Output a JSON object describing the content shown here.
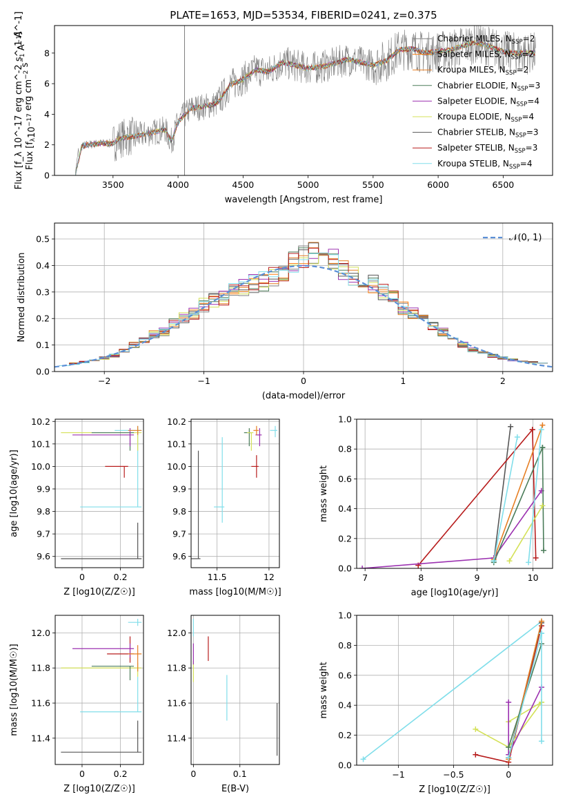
{
  "figure": {
    "title": "PLATE=1653, MJD=53534, FIBERID=0241, z=0.375"
  },
  "colors": {
    "spectrum": "#7f7f7f",
    "normal_curve": "#5b8fd6",
    "grid": "#b0b0b0",
    "models": [
      "#8c8c8c",
      "#d62728",
      "#ff7f0e",
      "#2ca02c",
      "#9467bd",
      "#dbdb8d",
      "#17becf",
      "#8c564b",
      "#e377c2"
    ]
  },
  "models": [
    {
      "label": "Chabrier MILES, N_SSP=2",
      "color": "#7f7f7f"
    },
    {
      "label": "Salpeter MILES, N_SSP=2",
      "color": "#ff7f0e"
    },
    {
      "label": "Kroupa MILES, N_SSP=2",
      "color": "#e67e22"
    },
    {
      "label": "Chabrier ELODIE, N_SSP=3",
      "color": "#4a7c59"
    },
    {
      "label": "Salpeter ELODIE, N_SSP=4",
      "color": "#9b30b0"
    },
    {
      "label": "Kroupa ELODIE, N_SSP=4",
      "color": "#d4e157"
    },
    {
      "label": "Chabrier STELIB, N_SSP=3",
      "color": "#555555"
    },
    {
      "label": "Salpeter STELIB, N_SSP=3",
      "color": "#b71c1c"
    },
    {
      "label": "Kroupa STELIB, N_SSP=4",
      "color": "#80deea"
    }
  ],
  "chart_data": [
    {
      "id": "spectrum",
      "type": "line",
      "xlabel": "wavelength [Angstrom, rest frame]",
      "ylabel": "Flux [f_λ 10^-17 erg cm^-2 s^-1 A^-1]",
      "xlim": [
        3050,
        6880
      ],
      "ylim": [
        0,
        9.8
      ],
      "xticks": [
        3500,
        4000,
        4500,
        5000,
        5500,
        6000,
        6500
      ],
      "yticks": [
        0,
        2,
        4,
        6,
        8
      ],
      "x_range": [
        3210,
        6750
      ],
      "x": [
        3210,
        3260,
        3300,
        3400,
        3500,
        3550,
        3600,
        3700,
        3800,
        3900,
        3950,
        4000,
        4100,
        4200,
        4300,
        4400,
        4500,
        4600,
        4700,
        4800,
        4900,
        5000,
        5100,
        5200,
        5300,
        5400,
        5500,
        5600,
        5700,
        5800,
        5900,
        6000,
        6100,
        6200,
        6300,
        6400,
        6500,
        6600,
        6750
      ],
      "y": [
        0.1,
        1.9,
        2.0,
        2.1,
        2.1,
        2.4,
        2.5,
        2.6,
        2.8,
        3.0,
        2.2,
        3.5,
        4.4,
        4.5,
        4.7,
        5.9,
        6.3,
        6.9,
        6.8,
        7.4,
        7.2,
        7.0,
        7.1,
        7.3,
        7.6,
        7.4,
        7.2,
        7.5,
        8.2,
        8.3,
        8.0,
        8.1,
        8.2,
        8.5,
        8.7,
        8.4,
        8.1,
        8.0,
        8.0
      ]
    },
    {
      "id": "residuals",
      "type": "line",
      "xlabel": "(data-model)/error",
      "ylabel": "Normed distribution",
      "xlim": [
        -2.5,
        2.5
      ],
      "ylim": [
        0,
        0.56
      ],
      "xticks": [
        -2,
        -1,
        0,
        1,
        2
      ],
      "yticks": [
        0.0,
        0.1,
        0.2,
        0.3,
        0.4,
        0.5
      ],
      "legend": "𝒩(0, 1)",
      "normal": {
        "mean": 0,
        "std": 1
      },
      "bin_centers": [
        -2.4,
        -2.3,
        -2.2,
        -2.1,
        -2.0,
        -1.9,
        -1.8,
        -1.7,
        -1.6,
        -1.5,
        -1.4,
        -1.3,
        -1.2,
        -1.1,
        -1.0,
        -0.9,
        -0.8,
        -0.7,
        -0.6,
        -0.5,
        -0.4,
        -0.3,
        -0.2,
        -0.1,
        0.0,
        0.1,
        0.2,
        0.3,
        0.4,
        0.5,
        0.6,
        0.7,
        0.8,
        0.9,
        1.0,
        1.1,
        1.2,
        1.3,
        1.4,
        1.5,
        1.6,
        1.7,
        1.8,
        1.9,
        2.0,
        2.1,
        2.2,
        2.3,
        2.4
      ],
      "hist": [
        0.025,
        0.03,
        0.035,
        0.04,
        0.05,
        0.06,
        0.08,
        0.1,
        0.12,
        0.14,
        0.15,
        0.18,
        0.2,
        0.22,
        0.25,
        0.27,
        0.28,
        0.3,
        0.32,
        0.33,
        0.34,
        0.36,
        0.38,
        0.42,
        0.44,
        0.45,
        0.43,
        0.42,
        0.38,
        0.36,
        0.35,
        0.33,
        0.3,
        0.28,
        0.24,
        0.22,
        0.2,
        0.17,
        0.15,
        0.12,
        0.1,
        0.08,
        0.07,
        0.06,
        0.05,
        0.045,
        0.04,
        0.035,
        0.03
      ]
    },
    {
      "id": "age_vs_Z",
      "type": "scatter",
      "xlabel": "Z [log10(Z/Z☉)]",
      "ylabel": "age  [log10(age/yr)]",
      "xlim": [
        -0.14,
        0.32
      ],
      "ylim": [
        9.55,
        10.21
      ],
      "xticks": [
        0.0,
        0.2
      ],
      "yticks": [
        9.6,
        9.7,
        9.8,
        9.9,
        10.0,
        10.1,
        10.2
      ],
      "points": [
        {
          "x": 0.29,
          "y": 9.59,
          "xerr": 0.4,
          "yerr": [
            0.0,
            0.16
          ],
          "model": 6
        },
        {
          "x": 0.29,
          "y": 9.82,
          "xerr": 0.3,
          "yerr": [
            0.0,
            0.34
          ],
          "model": 8
        },
        {
          "x": 0.22,
          "y": 10.0,
          "xerr": 0.1,
          "yerr": [
            0.05,
            0.0
          ],
          "model": 7
        },
        {
          "x": 0.29,
          "y": 10.15,
          "xerr": 0.4,
          "yerr": [
            0.08,
            0.02
          ],
          "model": 5
        },
        {
          "x": 0.25,
          "y": 10.15,
          "xerr": 0.2,
          "yerr": [
            0.08,
            0.0
          ],
          "model": 3
        },
        {
          "x": 0.25,
          "y": 10.14,
          "xerr": 0.3,
          "yerr": [
            0.05,
            0.03
          ],
          "model": 4
        },
        {
          "x": 0.29,
          "y": 10.16,
          "xerr": 0.12,
          "yerr": [
            0.02,
            0.02
          ],
          "model": 8
        },
        {
          "x": 0.29,
          "y": 10.16,
          "xerr": 0.05,
          "yerr": [
            0.02,
            0.02
          ],
          "model": 2
        }
      ]
    },
    {
      "id": "age_vs_mass",
      "type": "scatter",
      "xlabel": "mass [log10(M/M☉)]",
      "ylabel": "",
      "xlim": [
        11.25,
        12.1
      ],
      "ylim": [
        9.55,
        10.21
      ],
      "xticks": [
        11.5,
        12.0
      ],
      "yticks": [
        9.6,
        9.7,
        9.8,
        9.9,
        10.0,
        10.1,
        10.2
      ],
      "points": [
        {
          "x": 11.32,
          "y": 9.59,
          "xerr": 0.1,
          "yerr": [
            0.0,
            0.48
          ],
          "model": 6
        },
        {
          "x": 11.55,
          "y": 9.82,
          "xerr": 0.08,
          "yerr": [
            0.07,
            0.31
          ],
          "model": 8
        },
        {
          "x": 11.88,
          "y": 10.0,
          "xerr": 0.05,
          "yerr": [
            0.05,
            0.05
          ],
          "model": 7
        },
        {
          "x": 11.81,
          "y": 10.15,
          "xerr": 0.05,
          "yerr": [
            0.06,
            0.02
          ],
          "model": 3
        },
        {
          "x": 11.83,
          "y": 10.15,
          "xerr": 0.04,
          "yerr": [
            0.08,
            0.0
          ],
          "model": 5
        },
        {
          "x": 11.91,
          "y": 10.14,
          "xerr": 0.04,
          "yerr": [
            0.05,
            0.03
          ],
          "model": 4
        },
        {
          "x": 12.06,
          "y": 10.16,
          "xerr": 0.05,
          "yerr": [
            0.03,
            0.02
          ],
          "model": 8
        },
        {
          "x": 11.88,
          "y": 10.16,
          "xerr": 0.03,
          "yerr": [
            0.02,
            0.02
          ],
          "model": 2
        }
      ]
    },
    {
      "id": "weight_vs_age",
      "type": "line",
      "xlabel": "age  [log10(age/yr)]",
      "ylabel": "mass weight",
      "xlim": [
        6.85,
        10.35
      ],
      "ylim": [
        0,
        1.0
      ],
      "xticks": [
        7,
        8,
        9,
        10
      ],
      "yticks": [
        0.0,
        0.2,
        0.4,
        0.6,
        0.8,
        1.0
      ],
      "series": [
        {
          "model": 6,
          "x": [
            9.3,
            9.6
          ],
          "y": [
            0.05,
            0.95
          ]
        },
        {
          "model": 7,
          "x": [
            7.95,
            9.99
          ],
          "y": [
            0.02,
            0.93
          ]
        },
        {
          "model": 7,
          "x": [
            9.99,
            10.05
          ],
          "y": [
            0.93,
            0.07
          ]
        },
        {
          "model": 4,
          "x": [
            6.95,
            9.3,
            10.15
          ],
          "y": [
            0.0,
            0.07,
            0.52
          ]
        },
        {
          "model": 2,
          "x": [
            9.3,
            10.17
          ],
          "y": [
            0.06,
            0.96
          ]
        },
        {
          "model": 3,
          "x": [
            9.3,
            10.17
          ],
          "y": [
            0.04,
            0.81
          ]
        },
        {
          "model": 3,
          "x": [
            10.17,
            10.19
          ],
          "y": [
            0.81,
            0.12
          ]
        },
        {
          "model": 5,
          "x": [
            9.58,
            10.17
          ],
          "y": [
            0.05,
            0.42
          ]
        },
        {
          "model": 8,
          "x": [
            9.3,
            9.72
          ],
          "y": [
            0.05,
            0.88
          ]
        },
        {
          "model": 8,
          "x": [
            9.92,
            10.15
          ],
          "y": [
            0.04,
            0.93
          ]
        }
      ]
    },
    {
      "id": "mass_vs_Z",
      "type": "scatter",
      "xlabel": "Z [log10(Z/Z☉)]",
      "ylabel": "mass [log10(M/M☉)]",
      "xlim": [
        -0.14,
        0.32
      ],
      "ylim": [
        11.25,
        12.1
      ],
      "xticks": [
        0.0,
        0.2
      ],
      "yticks": [
        11.4,
        11.6,
        11.8,
        12.0
      ],
      "points": [
        {
          "x": 0.29,
          "y": 11.32,
          "xerr": 0.4,
          "yerr": [
            0.0,
            0.18
          ],
          "model": 6
        },
        {
          "x": 0.29,
          "y": 11.55,
          "xerr": 0.3,
          "yerr": [
            0.0,
            0.2
          ],
          "model": 8
        },
        {
          "x": 0.29,
          "y": 11.8,
          "xerr": 0.4,
          "yerr": [
            0.05,
            0.03
          ],
          "model": 5
        },
        {
          "x": 0.25,
          "y": 11.81,
          "xerr": 0.2,
          "yerr": [
            0.08,
            0.0
          ],
          "model": 3
        },
        {
          "x": 0.25,
          "y": 11.88,
          "xerr": 0.12,
          "yerr": [
            0.05,
            0.1
          ],
          "model": 7
        },
        {
          "x": 0.25,
          "y": 11.91,
          "xerr": 0.3,
          "yerr": [
            0.05,
            0.03
          ],
          "model": 4
        },
        {
          "x": 0.29,
          "y": 12.06,
          "xerr": 0.05,
          "yerr": [
            0.02,
            0.02
          ],
          "model": 8
        },
        {
          "x": 0.29,
          "y": 11.88,
          "xerr": 0.05,
          "yerr": [
            0.1,
            0.05
          ],
          "model": 2
        }
      ]
    },
    {
      "id": "mass_vs_ebv",
      "type": "scatter",
      "xlabel": "E(B-V)",
      "ylabel": "",
      "xlim": [
        -0.005,
        0.185
      ],
      "ylim": [
        11.25,
        12.1
      ],
      "xticks": [
        0.0,
        0.1
      ],
      "yticks": [
        11.4,
        11.6,
        11.8,
        12.0
      ],
      "points": [
        {
          "x": 0.18,
          "y": 11.45,
          "yerr": [
            0.15,
            0.15
          ],
          "model": 6
        },
        {
          "x": 0.072,
          "y": 11.62,
          "yerr": [
            0.12,
            0.14
          ],
          "model": 8
        },
        {
          "x": 0.032,
          "y": 11.9,
          "yerr": [
            0.06,
            0.08
          ],
          "model": 7
        },
        {
          "x": 0.0,
          "y": 11.78,
          "yerr": [
            0.06,
            0.06
          ],
          "model": 5
        },
        {
          "x": 0.0,
          "y": 11.88,
          "yerr": [
            0.06,
            0.06
          ],
          "model": 4
        },
        {
          "x": 0.0,
          "y": 12.03,
          "yerr": [
            0.05,
            0.05
          ],
          "model": 8
        }
      ]
    },
    {
      "id": "weight_vs_Z",
      "type": "line",
      "xlabel": "Z [log10(Z/Z☉)]",
      "ylabel": "mass weight",
      "xlim": [
        -1.38,
        0.4
      ],
      "ylim": [
        0,
        1.0
      ],
      "xticks": [
        -1.0,
        -0.5,
        0.0
      ],
      "yticks": [
        0.0,
        0.2,
        0.4,
        0.6,
        0.8,
        1.0
      ],
      "series": [
        {
          "model": 8,
          "x": [
            -1.32,
            0.3
          ],
          "y": [
            0.04,
            0.96
          ]
        },
        {
          "model": 7,
          "x": [
            -0.3,
            0.0,
            0.3
          ],
          "y": [
            0.07,
            0.02,
            0.93
          ]
        },
        {
          "model": 5,
          "x": [
            -0.3,
            0.0,
            0.3
          ],
          "y": [
            0.24,
            0.12,
            0.42
          ]
        },
        {
          "model": 5,
          "x": [
            0.0,
            0.3
          ],
          "y": [
            0.29,
            0.42
          ]
        },
        {
          "model": 4,
          "x": [
            0.0,
            0.0,
            0.3
          ],
          "y": [
            0.42,
            0.07,
            0.52
          ]
        },
        {
          "model": 6,
          "x": [
            0.0,
            0.3
          ],
          "y": [
            0.05,
            0.95
          ]
        },
        {
          "model": 2,
          "x": [
            0.0,
            0.3
          ],
          "y": [
            0.04,
            0.96
          ]
        },
        {
          "model": 3,
          "x": [
            0.0,
            0.3
          ],
          "y": [
            0.12,
            0.81
          ]
        },
        {
          "model": 8,
          "x": [
            0.0,
            0.3
          ],
          "y": [
            0.05,
            0.88
          ]
        },
        {
          "model": 8,
          "x": [
            0.3,
            0.3
          ],
          "y": [
            0.16,
            0.88
          ]
        }
      ]
    }
  ]
}
